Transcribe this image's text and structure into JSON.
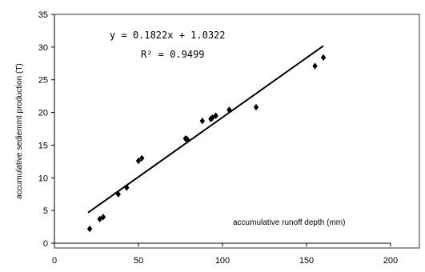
{
  "chart_data": {
    "type": "scatter",
    "title": "",
    "xlabel": "accumulative runoff depth (mm)",
    "ylabel": "accumulative sediemmt production (T)",
    "xlim": [
      0,
      200
    ],
    "ylim": [
      0,
      35
    ],
    "x_ticks": [
      0,
      50,
      100,
      150,
      200
    ],
    "y_ticks": [
      0,
      5,
      10,
      15,
      20,
      25,
      30,
      35
    ],
    "x_tick_labels": [
      "0",
      "50",
      "100",
      "150",
      "200"
    ],
    "y_tick_labels": [
      "0",
      "5",
      "10",
      "15",
      "20",
      "25",
      "30",
      "35"
    ],
    "grid": false,
    "points": {
      "x": [
        21,
        27,
        29,
        38,
        43,
        50,
        52,
        78,
        79,
        88,
        93,
        94,
        96,
        104,
        120,
        155,
        160
      ],
      "y": [
        2.2,
        3.7,
        4.0,
        7.5,
        8.5,
        12.6,
        13.0,
        16.0,
        15.9,
        18.7,
        19.0,
        19.2,
        19.5,
        20.4,
        20.8,
        27.1,
        28.4
      ]
    },
    "trendline": {
      "slope": 0.1822,
      "intercept": 1.0322,
      "x_range": [
        20,
        160
      ]
    },
    "equation_text": "y = 0.1822x + 1.0322",
    "r2_text": "R² = 0.9499"
  }
}
